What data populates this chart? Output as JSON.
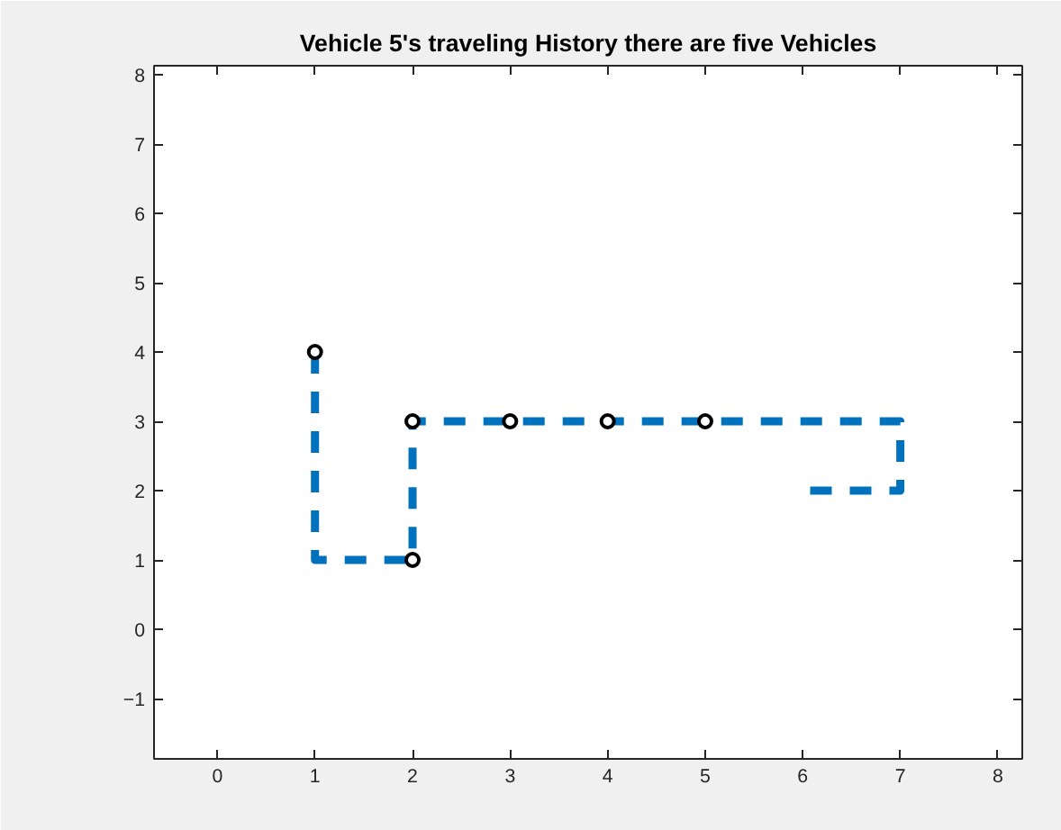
{
  "chart_data": {
    "type": "line",
    "title": "Vehicle 5's traveling History there are five Vehicles",
    "series": [
      {
        "type": "scatter",
        "color": "#000000",
        "marker": "circle",
        "x": [
          1,
          2,
          2,
          3,
          4,
          5
        ],
        "values": [
          4,
          3,
          1,
          3,
          3,
          3
        ]
      },
      {
        "color": "#0072bd",
        "line_style": "dashed",
        "x": [
          1,
          1,
          2,
          2,
          7,
          7,
          6
        ],
        "values": [
          4,
          1,
          1,
          3,
          3,
          2,
          2
        ]
      }
    ],
    "xlim": [
      -0.65,
      8.25
    ],
    "ylim": [
      -1.87,
      8.13
    ],
    "xticks": [
      0,
      1,
      2,
      3,
      4,
      5,
      6,
      7,
      8
    ],
    "yticks": [
      -1,
      0,
      1,
      2,
      3,
      4,
      5,
      6,
      7,
      8
    ],
    "grid": false
  }
}
